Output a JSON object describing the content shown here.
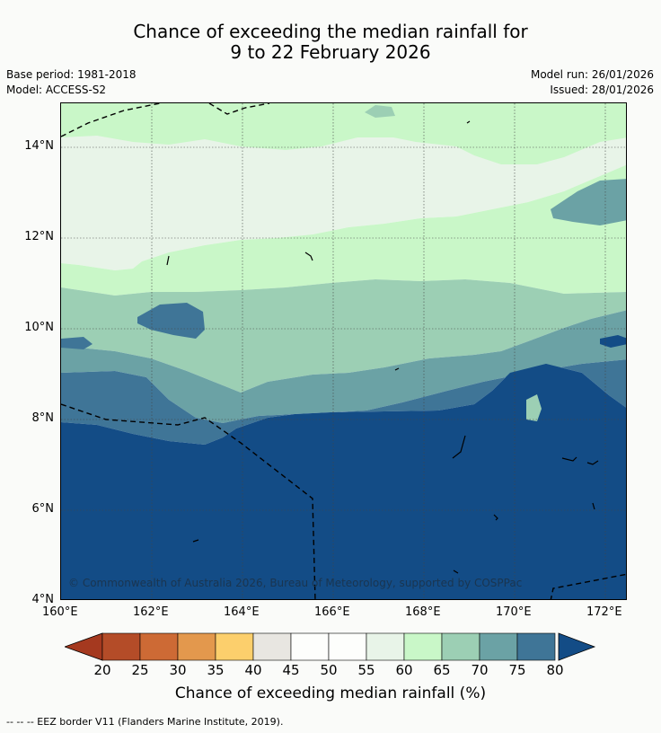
{
  "title_line1": "Chance of exceeding the median rainfall for",
  "title_line2": "9 to 22 February 2026",
  "base_period": "Base period: 1981-2018",
  "model": "Model: ACCESS-S2",
  "model_run": "Model run: 26/01/2026",
  "issued": "Issued: 28/01/2026",
  "copyright": "© Commonwealth of Australia 2026, Bureau of Meteorology, supported by COSPPac",
  "x_ticks": [
    "160°E",
    "162°E",
    "164°E",
    "166°E",
    "168°E",
    "170°E",
    "172°E"
  ],
  "y_ticks": [
    "14°N",
    "12°N",
    "10°N",
    "8°N",
    "6°N",
    "4°N"
  ],
  "colorbar": {
    "label": "Chance of exceeding median rainfall (%)",
    "ticks": [
      "20",
      "25",
      "30",
      "35",
      "40",
      "45",
      "50",
      "55",
      "60",
      "65",
      "70",
      "75",
      "80"
    ],
    "colors": {
      "under": "#a5391f",
      "bins": [
        "#b44c28",
        "#cd6a35",
        "#e3984d",
        "#fccf6c",
        "#e8e6e1",
        "#fdfefc",
        "#fdfefc",
        "#e8f4e8",
        "#c9f7c8",
        "#9ccfb4",
        "#6ba2a5",
        "#3f7597"
      ],
      "over": "#134c86"
    }
  },
  "footer": "--  --  -- EEZ border V11 (Flanders Marine Institute, 2019)."
}
